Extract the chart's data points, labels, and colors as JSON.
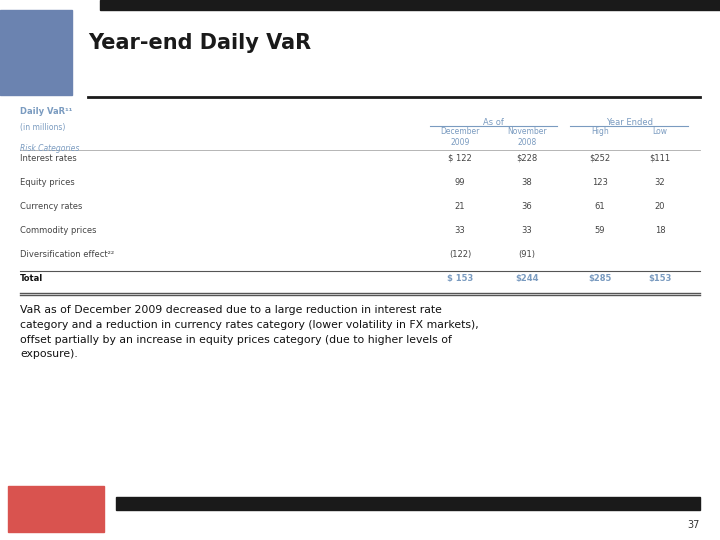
{
  "title": "Year-end Daily VaR",
  "table_title": "Daily VaR¹¹",
  "table_subtitle": "(in millions)",
  "header_group1": "As of",
  "header_group2": "Year Ended",
  "row_labels": [
    "Interest rates",
    "Equity prices",
    "Currency rates",
    "Commodity prices",
    "Diversification effect²²",
    "Total"
  ],
  "data": [
    [
      "$ 122",
      "$228",
      "$252",
      "$111"
    ],
    [
      "99",
      "38",
      "123",
      "32"
    ],
    [
      "21",
      "36",
      "61",
      "20"
    ],
    [
      "33",
      "33",
      "59",
      "18"
    ],
    [
      "(122)",
      "(91)",
      "",
      ""
    ],
    [
      "$ 153",
      "$244",
      "$285",
      "$153"
    ]
  ],
  "footnote": "VaR as of December 2009 decreased due to a large reduction in interest rate\ncategory and a reduction in currency rates category (lower volatility in FX markets),\noffset partially by an increase in equity prices category (due to higher levels of\nexposure).",
  "page_number": "37",
  "goldman_sachs_color": "#6b83b0",
  "mpf_color": "#d9534f",
  "header_text_color": "#7a9bc0",
  "data_text_color": "#444444",
  "bg_color": "#ffffff",
  "top_bar_color": "#1a1a1a",
  "bottom_bar_color": "#1a1a1a"
}
